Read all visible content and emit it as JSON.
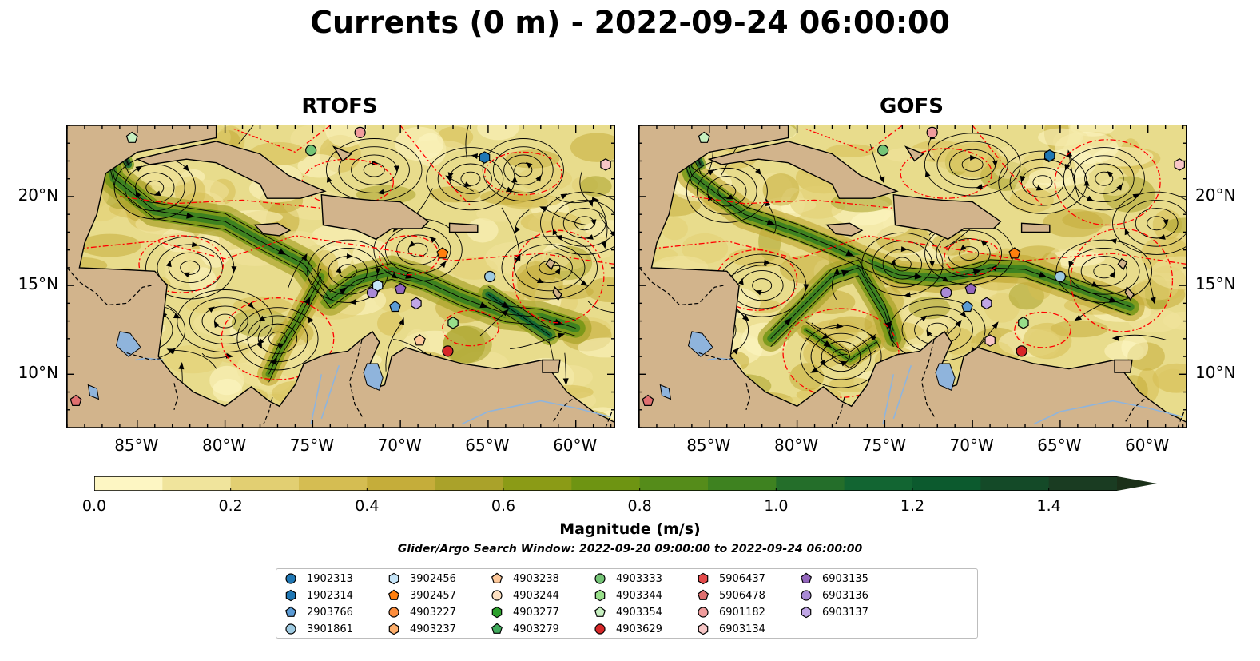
{
  "title": "Currents (0 m) - 2022-09-24 06:00:00",
  "panels": [
    {
      "id": "rtofs",
      "title": "RTOFS"
    },
    {
      "id": "gofs",
      "title": "GOFS"
    }
  ],
  "map": {
    "lon_range": [
      -89,
      -57.8
    ],
    "lat_range": [
      7,
      24
    ],
    "lon_ticks": [
      "85°W",
      "80°W",
      "75°W",
      "70°W",
      "65°W",
      "60°W"
    ],
    "lat_ticks": [
      "20°N",
      "15°N",
      "10°N"
    ],
    "land_color": "#d2b48c",
    "lake_color": "#8fb4dc",
    "front_line_color": "#ff0000"
  },
  "colorbar": {
    "label": "Magnitude (m/s)",
    "range": [
      0.0,
      1.5
    ],
    "extend": "max",
    "ticks": [
      "0.0",
      "0.2",
      "0.4",
      "0.6",
      "0.8",
      "1.0",
      "1.2",
      "1.4"
    ],
    "colors": [
      "#fdf6c3",
      "#f0e49c",
      "#e2cf72",
      "#d5bd52",
      "#c5ad3a",
      "#aaa22a",
      "#8b9b16",
      "#6e9412",
      "#558c1a",
      "#3e8220",
      "#246e2a",
      "#126532",
      "#0c5a2e",
      "#144a28",
      "#1a3c22",
      "#1b3019"
    ]
  },
  "search_window": "Glider/Argo Search Window: 2022-09-20 09:00:00 to 2022-09-24 06:00:00",
  "legend": [
    {
      "id": "1902313",
      "marker": "circle",
      "color": "#1f77b4"
    },
    {
      "id": "1902314",
      "marker": "hexagon",
      "color": "#1f77b4"
    },
    {
      "id": "2903766",
      "marker": "pentagon",
      "color": "#5b9bd5"
    },
    {
      "id": "3901861",
      "marker": "circle",
      "color": "#9ecae1"
    },
    {
      "id": "3902456",
      "marker": "hexagon",
      "color": "#c6e4f7"
    },
    {
      "id": "3902457",
      "marker": "pentagon",
      "color": "#ff7f0e"
    },
    {
      "id": "4903227",
      "marker": "circle",
      "color": "#fd8d3c"
    },
    {
      "id": "4903237",
      "marker": "hexagon",
      "color": "#fdae6b"
    },
    {
      "id": "4903238",
      "marker": "pentagon",
      "color": "#fdc89a"
    },
    {
      "id": "4903244",
      "marker": "circle",
      "color": "#fde0c2"
    },
    {
      "id": "4903277",
      "marker": "hexagon",
      "color": "#2ca02c"
    },
    {
      "id": "4903279",
      "marker": "pentagon",
      "color": "#41ab5d"
    },
    {
      "id": "4903333",
      "marker": "circle",
      "color": "#74c476"
    },
    {
      "id": "4903344",
      "marker": "hexagon",
      "color": "#98df8a"
    },
    {
      "id": "4903354",
      "marker": "pentagon",
      "color": "#c7f0c0"
    },
    {
      "id": "4903629",
      "marker": "circle",
      "color": "#d62728"
    },
    {
      "id": "5906437",
      "marker": "hexagon",
      "color": "#e34a4a"
    },
    {
      "id": "5906478",
      "marker": "pentagon",
      "color": "#e07070"
    },
    {
      "id": "6901182",
      "marker": "circle",
      "color": "#f09c9c"
    },
    {
      "id": "6903134",
      "marker": "hexagon",
      "color": "#f7c6c6"
    },
    {
      "id": "6903135",
      "marker": "pentagon",
      "color": "#9467bd"
    },
    {
      "id": "6903136",
      "marker": "circle",
      "color": "#a98ad6"
    },
    {
      "id": "6903137",
      "marker": "hexagon",
      "color": "#c0a6e6"
    }
  ],
  "floats": {
    "rtofs": [
      {
        "id": "4903354",
        "lon": -85.3,
        "lat": 23.3
      },
      {
        "id": "5906478",
        "lon": -88.5,
        "lat": 8.5
      },
      {
        "id": "4903333",
        "lon": -75.1,
        "lat": 22.6
      },
      {
        "id": "6901182",
        "lon": -72.3,
        "lat": 23.6
      },
      {
        "id": "1902314",
        "lon": -65.2,
        "lat": 22.2
      },
      {
        "id": "6903134",
        "lon": -58.3,
        "lat": 21.8
      },
      {
        "id": "3902457",
        "lon": -67.6,
        "lat": 16.8
      },
      {
        "id": "3901861",
        "lon": -64.9,
        "lat": 15.5
      },
      {
        "id": "6903136",
        "lon": -71.6,
        "lat": 14.6
      },
      {
        "id": "3902456",
        "lon": -71.3,
        "lat": 15.0
      },
      {
        "id": "6903135",
        "lon": -70.0,
        "lat": 14.8
      },
      {
        "id": "6903137",
        "lon": -69.1,
        "lat": 14.0
      },
      {
        "id": "2903766",
        "lon": -70.3,
        "lat": 13.8
      },
      {
        "id": "4903344",
        "lon": -67.0,
        "lat": 12.9
      },
      {
        "id": "4903238",
        "lon": -68.9,
        "lat": 11.9
      },
      {
        "id": "4903629",
        "lon": -67.3,
        "lat": 11.3
      }
    ],
    "gofs": [
      {
        "id": "4903354",
        "lon": -85.3,
        "lat": 23.3
      },
      {
        "id": "5906478",
        "lon": -88.5,
        "lat": 8.5
      },
      {
        "id": "4903333",
        "lon": -75.1,
        "lat": 22.6
      },
      {
        "id": "6901182",
        "lon": -72.3,
        "lat": 23.6
      },
      {
        "id": "1902314",
        "lon": -65.6,
        "lat": 22.3
      },
      {
        "id": "6903134",
        "lon": -58.2,
        "lat": 21.8
      },
      {
        "id": "3902457",
        "lon": -67.6,
        "lat": 16.8
      },
      {
        "id": "3901861",
        "lon": -65.0,
        "lat": 15.5
      },
      {
        "id": "6903136",
        "lon": -71.5,
        "lat": 14.6
      },
      {
        "id": "6903135",
        "lon": -70.1,
        "lat": 14.8
      },
      {
        "id": "2903766",
        "lon": -70.3,
        "lat": 13.8
      },
      {
        "id": "6903137",
        "lon": -69.2,
        "lat": 14.0
      },
      {
        "id": "4903344",
        "lon": -67.1,
        "lat": 12.9
      },
      {
        "id": "6903134",
        "lon": -69.0,
        "lat": 11.9
      },
      {
        "id": "4903629",
        "lon": -67.2,
        "lat": 11.3
      }
    ]
  }
}
